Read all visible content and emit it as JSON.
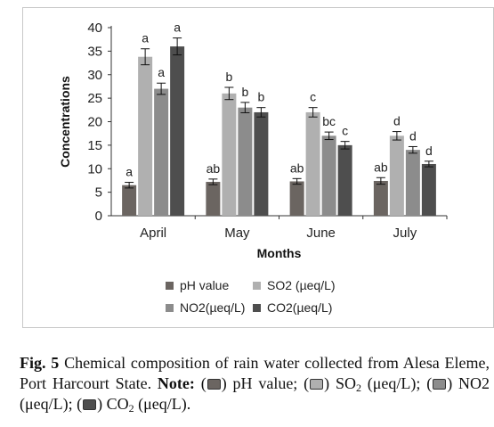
{
  "chart_data": {
    "type": "bar",
    "xlabel": "Months",
    "ylabel": "Concentrations",
    "ylim": [
      0,
      40
    ],
    "yticks": [
      0,
      5,
      10,
      15,
      20,
      25,
      30,
      35,
      40
    ],
    "categories": [
      "April",
      "May",
      "June",
      "July"
    ],
    "legend_position": "bottom",
    "series": [
      {
        "name": "pH value",
        "color": "#6b6561",
        "values": [
          6.5,
          7.2,
          7.3,
          7.4
        ],
        "errors": [
          0.6,
          0.6,
          0.6,
          0.7
        ],
        "sig": [
          "a",
          "ab",
          "ab",
          "ab"
        ]
      },
      {
        "name": "SO2 (µeq/L)",
        "color": "#b0b0b0",
        "values": [
          33.8,
          26.0,
          22.0,
          17.0
        ],
        "errors": [
          1.7,
          1.3,
          1.0,
          0.9
        ],
        "sig": [
          "a",
          "b",
          "c",
          "d"
        ]
      },
      {
        "name": "NO2(µeq/L)",
        "color": "#8c8c8c",
        "values": [
          27.0,
          23.0,
          17.0,
          14.0
        ],
        "errors": [
          1.2,
          1.1,
          0.8,
          0.7
        ],
        "sig": [
          "a",
          "b",
          "bc",
          "d"
        ]
      },
      {
        "name": "CO2(µeq/L)",
        "color": "#4e4e4e",
        "values": [
          36.0,
          22.0,
          15.0,
          11.0
        ],
        "errors": [
          1.8,
          1.0,
          0.8,
          0.6
        ],
        "sig": [
          "a",
          "b",
          "c",
          "d"
        ]
      }
    ]
  },
  "caption": {
    "fig_label": "Fig. 5",
    "text_1": "Chemical composition of rain water collected from Alesa Eleme, Port Harcourt State.",
    "note_label": "Note:",
    "item_ph": "pH value;",
    "item_so2_pre": "SO",
    "item_so2_sub": "2",
    "item_so2_post": "(μeq/L);",
    "item_no2": "NO2 (μeq/L);",
    "item_co2_pre": "CO",
    "item_co2_sub": "2",
    "item_co2_post": "(μeq/L)."
  }
}
